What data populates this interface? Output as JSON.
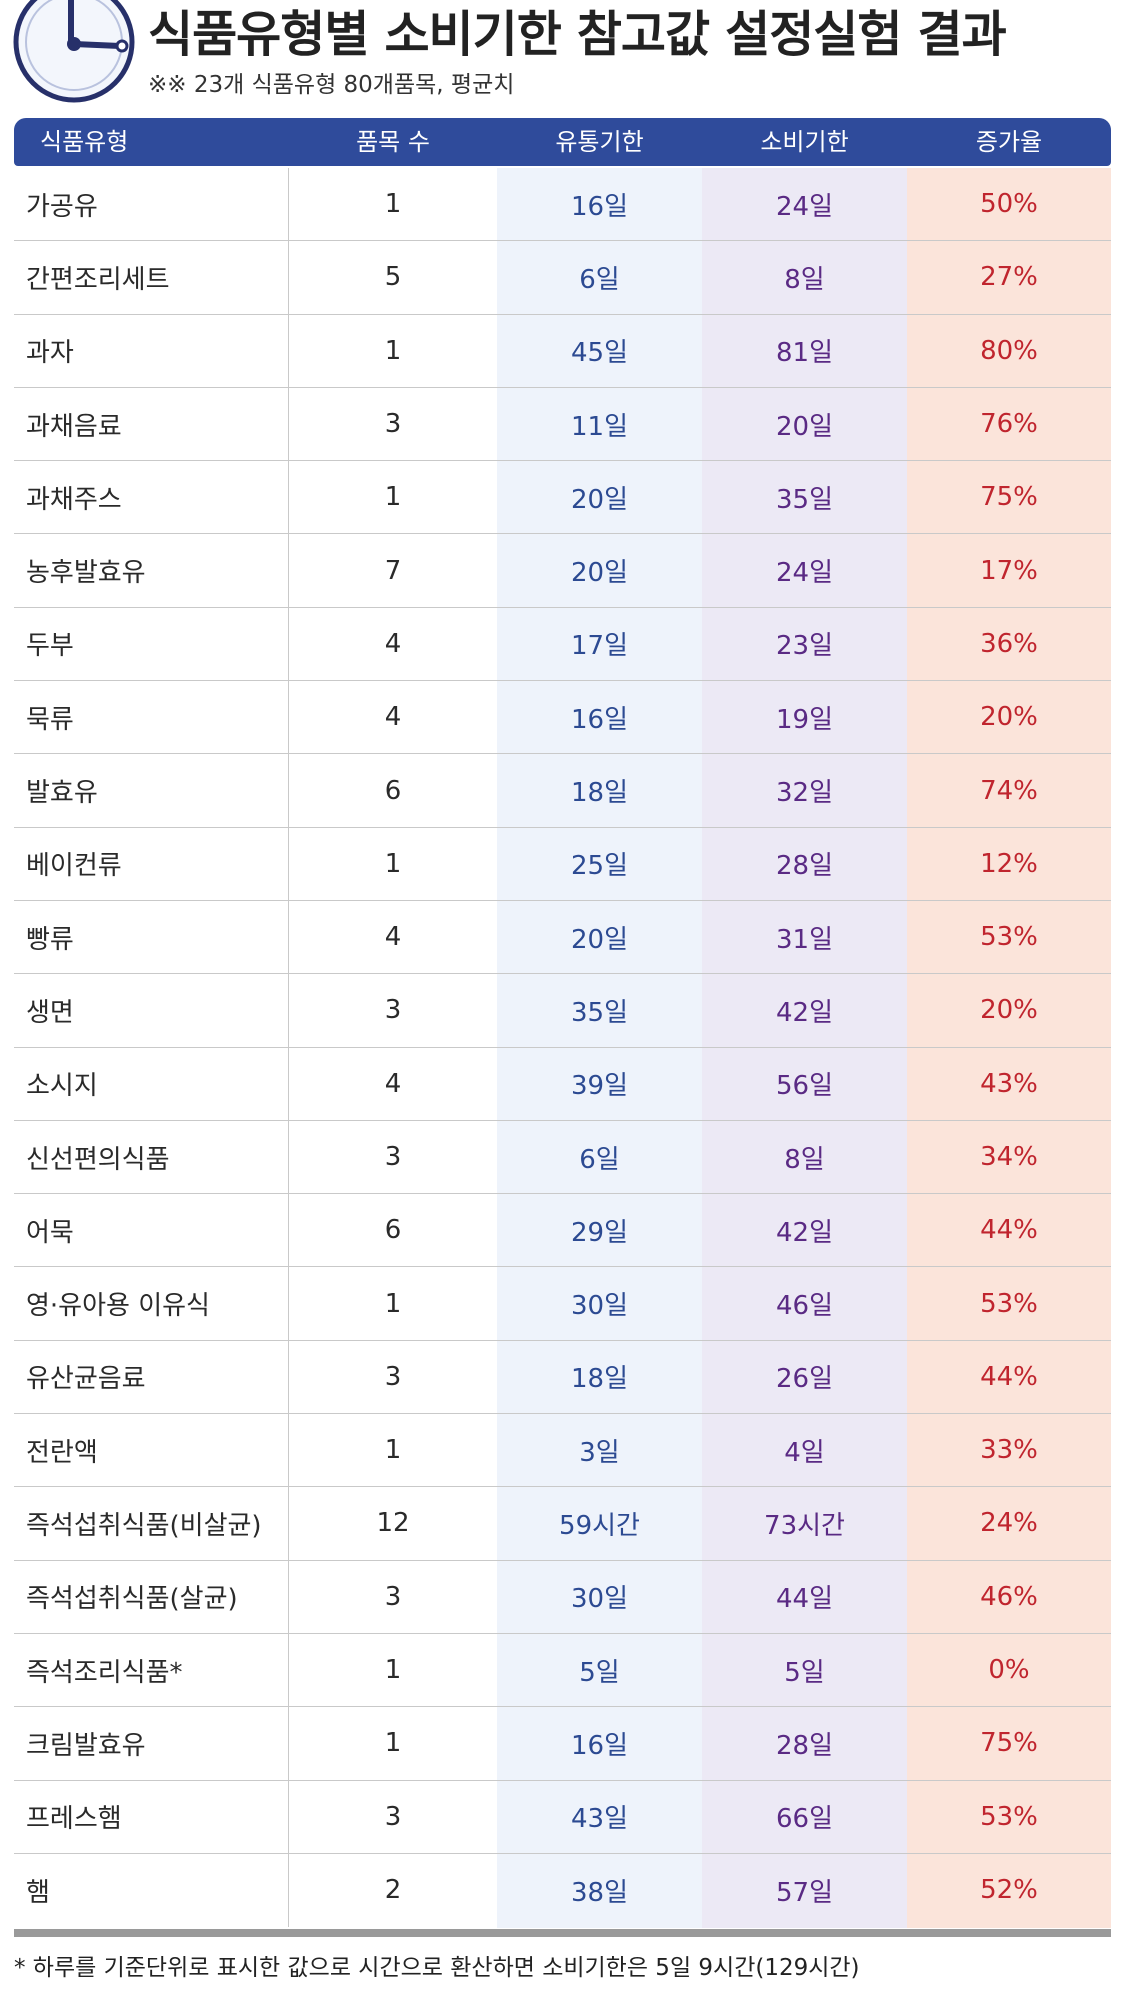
{
  "header": {
    "title": "식품유형별 소비기한 참고값 설정실험 결과",
    "subtitle": "※※ 23개 식품유형 80개품목, 평균치"
  },
  "table": {
    "columns": [
      "식품유형",
      "품목 수",
      "유통기한",
      "소비기한",
      "증가율"
    ],
    "rows": [
      {
        "type": "가공유",
        "count": "1",
        "shelf": "16일",
        "use": "24일",
        "rate": "50%"
      },
      {
        "type": "간편조리세트",
        "count": "5",
        "shelf": "6일",
        "use": "8일",
        "rate": "27%"
      },
      {
        "type": "과자",
        "count": "1",
        "shelf": "45일",
        "use": "81일",
        "rate": "80%"
      },
      {
        "type": "과채음료",
        "count": "3",
        "shelf": "11일",
        "use": "20일",
        "rate": "76%"
      },
      {
        "type": "과채주스",
        "count": "1",
        "shelf": "20일",
        "use": "35일",
        "rate": "75%"
      },
      {
        "type": "농후발효유",
        "count": "7",
        "shelf": "20일",
        "use": "24일",
        "rate": "17%"
      },
      {
        "type": "두부",
        "count": "4",
        "shelf": "17일",
        "use": "23일",
        "rate": "36%"
      },
      {
        "type": "묵류",
        "count": "4",
        "shelf": "16일",
        "use": "19일",
        "rate": "20%"
      },
      {
        "type": "발효유",
        "count": "6",
        "shelf": "18일",
        "use": "32일",
        "rate": "74%"
      },
      {
        "type": "베이컨류",
        "count": "1",
        "shelf": "25일",
        "use": "28일",
        "rate": "12%"
      },
      {
        "type": "빵류",
        "count": "4",
        "shelf": "20일",
        "use": "31일",
        "rate": "53%"
      },
      {
        "type": "생면",
        "count": "3",
        "shelf": "35일",
        "use": "42일",
        "rate": "20%"
      },
      {
        "type": "소시지",
        "count": "4",
        "shelf": "39일",
        "use": "56일",
        "rate": "43%"
      },
      {
        "type": "신선편의식품",
        "count": "3",
        "shelf": "6일",
        "use": "8일",
        "rate": "34%"
      },
      {
        "type": "어묵",
        "count": "6",
        "shelf": "29일",
        "use": "42일",
        "rate": "44%"
      },
      {
        "type": "영·유아용 이유식",
        "count": "1",
        "shelf": "30일",
        "use": "46일",
        "rate": "53%"
      },
      {
        "type": "유산균음료",
        "count": "3",
        "shelf": "18일",
        "use": "26일",
        "rate": "44%"
      },
      {
        "type": "전란액",
        "count": "1",
        "shelf": "3일",
        "use": "4일",
        "rate": "33%"
      },
      {
        "type": "즉석섭취식품(비살균)",
        "count": "12",
        "shelf": "59시간",
        "use": "73시간",
        "rate": "24%"
      },
      {
        "type": "즉석섭취식품(살균)",
        "count": "3",
        "shelf": "30일",
        "use": "44일",
        "rate": "46%"
      },
      {
        "type": "즉석조리식품*",
        "count": "1",
        "shelf": "5일",
        "use": "5일",
        "rate": "0%"
      },
      {
        "type": "크림발효유",
        "count": "1",
        "shelf": "16일",
        "use": "28일",
        "rate": "75%"
      },
      {
        "type": "프레스햄",
        "count": "3",
        "shelf": "43일",
        "use": "66일",
        "rate": "53%"
      },
      {
        "type": "햄",
        "count": "2",
        "shelf": "38일",
        "use": "57일",
        "rate": "52%"
      }
    ]
  },
  "footnote": "* 하루를 기준단위로 표시한 값으로 시간으로 환산하면 소비기한은 5일 9시간(129시간)",
  "colors": {
    "header_bg": "#2f4b9b",
    "shelf_text": "#2c4a92",
    "use_text": "#5a2a84",
    "rate_text": "#c0252e",
    "rate_bg": "#fbe4da"
  },
  "icons": [
    "clock-icon"
  ]
}
